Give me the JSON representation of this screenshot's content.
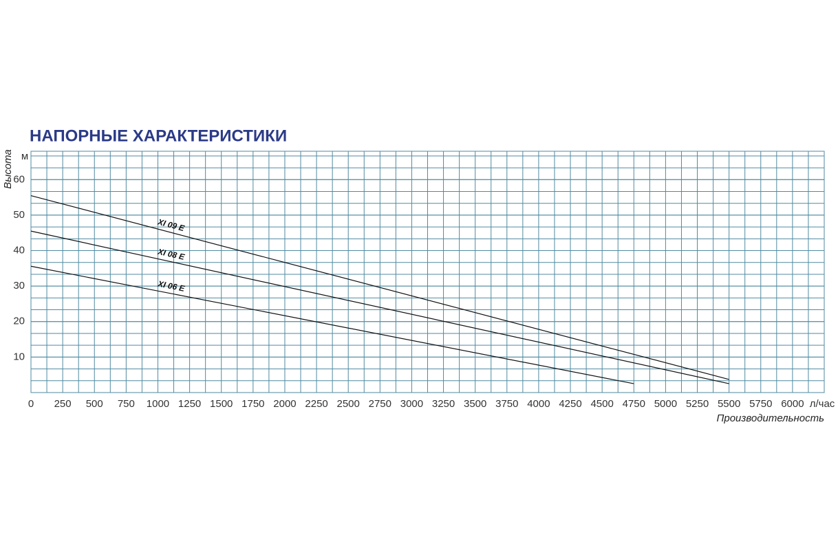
{
  "chart_data": {
    "type": "line",
    "title": "НАПОРНЫЕ ХАРАКТЕРИСТИКИ",
    "y_label": "Высота",
    "y_unit": "м",
    "x_label": "Производительность",
    "x_unit": "л/час",
    "xlim": [
      0,
      6250
    ],
    "ylim": [
      0,
      68
    ],
    "xticks": [
      0,
      250,
      500,
      750,
      1000,
      1250,
      1500,
      1750,
      2000,
      2250,
      2500,
      2750,
      3000,
      3250,
      3500,
      3750,
      4000,
      4250,
      4500,
      4750,
      5000,
      5250,
      5500,
      5750,
      6000
    ],
    "yticks": [
      10,
      20,
      30,
      40,
      50,
      60
    ],
    "grid": true,
    "series": [
      {
        "name": "XI 09 E",
        "color": "#111111",
        "x": [
          0,
          5500
        ],
        "values": [
          55.5,
          3.7
        ]
      },
      {
        "name": "XI 08 E",
        "color": "#111111",
        "x": [
          0,
          5500
        ],
        "values": [
          45.5,
          2.5
        ]
      },
      {
        "name": "XI 06 E",
        "color": "#111111",
        "x": [
          0,
          4750
        ],
        "values": [
          35.6,
          2.5
        ]
      }
    ]
  }
}
